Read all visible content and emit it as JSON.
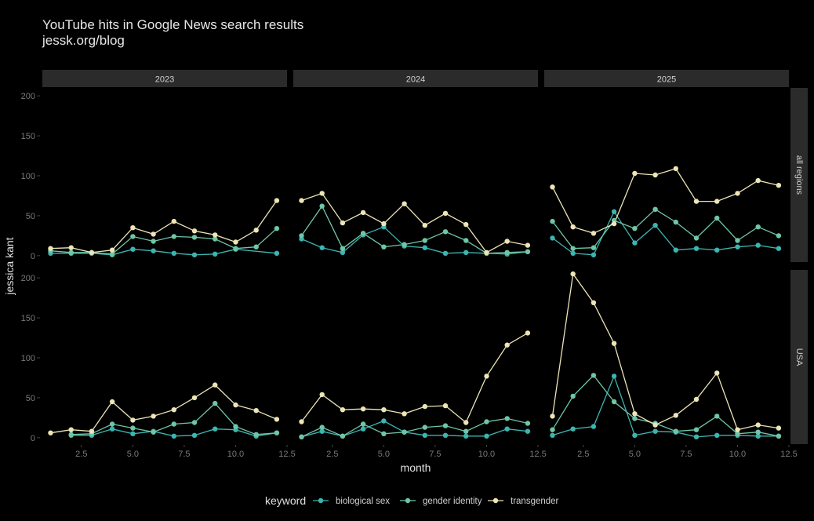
{
  "chart_data": {
    "type": "line",
    "title": "YouTube hits in Google News search results",
    "subtitle": "jessk.org/blog",
    "xlabel": "month",
    "ylabel": "jessica kant",
    "facet_cols": [
      "2023",
      "2024",
      "2025"
    ],
    "facet_rows": [
      "all regions",
      "USA"
    ],
    "x_range": [
      0.6,
      12.5
    ],
    "x_ticks": [
      "2.5",
      "5.0",
      "7.5",
      "10.0",
      "12.5"
    ],
    "y_range": [
      -8,
      210
    ],
    "y_ticks": [
      "0",
      "50",
      "100",
      "150",
      "200"
    ],
    "legend_title": "keyword",
    "legend_position": "bottom",
    "series_info": [
      {
        "name": "biological sex",
        "color": "#3BB5B0"
      },
      {
        "name": "gender identity",
        "color": "#6FC6A6"
      },
      {
        "name": "transgender",
        "color": "#EDE5B6"
      }
    ],
    "panels": [
      {
        "year": "2023",
        "region": "all regions",
        "series": [
          {
            "name": "biological sex",
            "x": [
              1,
              2,
              3,
              4,
              5,
              6,
              7,
              8,
              9,
              10,
              12
            ],
            "y": [
              3,
              3,
              3,
              1,
              8,
              6,
              3,
              1,
              2,
              8,
              3
            ]
          },
          {
            "name": "gender identity",
            "x": [
              1,
              2,
              3,
              4,
              5,
              6,
              7,
              8,
              9,
              10,
              11,
              12
            ],
            "y": [
              6,
              4,
              4,
              2,
              24,
              18,
              24,
              23,
              21,
              9,
              11,
              34
            ]
          },
          {
            "name": "transgender",
            "x": [
              1,
              2,
              3,
              4,
              5,
              6,
              7,
              8,
              9,
              10,
              11,
              12
            ],
            "y": [
              9,
              10,
              4,
              7,
              35,
              27,
              43,
              31,
              26,
              17,
              32,
              69
            ]
          }
        ]
      },
      {
        "year": "2024",
        "region": "all regions",
        "series": [
          {
            "name": "biological sex",
            "x": [
              1,
              2,
              3,
              4,
              5,
              6,
              7,
              8,
              9,
              10,
              11,
              12
            ],
            "y": [
              21,
              10,
              4,
              26,
              36,
              12,
              10,
              3,
              4,
              3,
              2,
              5
            ]
          },
          {
            "name": "gender identity",
            "x": [
              1,
              2,
              3,
              4,
              5,
              6,
              7,
              8,
              9,
              10,
              11,
              12
            ],
            "y": [
              25,
              62,
              9,
              28,
              11,
              14,
              19,
              30,
              19,
              3,
              4,
              5
            ]
          },
          {
            "name": "transgender",
            "x": [
              1,
              2,
              3,
              4,
              5,
              6,
              7,
              8,
              9,
              10,
              11,
              12
            ],
            "y": [
              69,
              78,
              41,
              54,
              40,
              65,
              38,
              53,
              39,
              4,
              18,
              13
            ]
          }
        ]
      },
      {
        "year": "2025",
        "region": "all regions",
        "series": [
          {
            "name": "biological sex",
            "x": [
              1,
              2,
              3,
              4,
              5,
              6,
              7,
              8,
              9,
              10,
              11,
              12
            ],
            "y": [
              22,
              3,
              1,
              55,
              16,
              38,
              7,
              9,
              7,
              11,
              13,
              9
            ]
          },
          {
            "name": "gender identity",
            "x": [
              1,
              2,
              3,
              4,
              5,
              6,
              7,
              8,
              9,
              10,
              11,
              12
            ],
            "y": [
              43,
              9,
              10,
              44,
              34,
              58,
              42,
              22,
              47,
              19,
              36,
              25
            ]
          },
          {
            "name": "transgender",
            "x": [
              1,
              2,
              3,
              4,
              5,
              6,
              7,
              8,
              9,
              10,
              11,
              12
            ],
            "y": [
              86,
              36,
              28,
              40,
              103,
              101,
              109,
              68,
              68,
              78,
              94,
              88
            ]
          }
        ]
      },
      {
        "year": "2023",
        "region": "USA",
        "series": [
          {
            "name": "biological sex",
            "x": [
              2,
              3,
              4,
              5,
              6,
              7,
              8,
              9,
              10,
              11,
              12
            ],
            "y": [
              3,
              3,
              11,
              5,
              8,
              2,
              3,
              11,
              10,
              2,
              6
            ]
          },
          {
            "name": "gender identity",
            "x": [
              2,
              3,
              4,
              5,
              6,
              7,
              8,
              9,
              10,
              11,
              12
            ],
            "y": [
              4,
              5,
              17,
              12,
              7,
              17,
              19,
              43,
              14,
              4,
              6
            ]
          },
          {
            "name": "transgender",
            "x": [
              1,
              2,
              3,
              4,
              5,
              6,
              7,
              8,
              9,
              10,
              11,
              12
            ],
            "y": [
              6,
              10,
              8,
              45,
              22,
              27,
              35,
              50,
              66,
              41,
              34,
              23
            ]
          }
        ]
      },
      {
        "year": "2024",
        "region": "USA",
        "series": [
          {
            "name": "biological sex",
            "x": [
              1,
              2,
              3,
              4,
              5,
              6,
              7,
              8,
              9,
              10,
              11,
              12
            ],
            "y": [
              1,
              8,
              2,
              11,
              21,
              7,
              3,
              3,
              2,
              2,
              11,
              8
            ]
          },
          {
            "name": "gender identity",
            "x": [
              1,
              2,
              3,
              4,
              5,
              6,
              7,
              8,
              9,
              10,
              11,
              12
            ],
            "y": [
              1,
              13,
              2,
              17,
              5,
              7,
              13,
              15,
              8,
              20,
              24,
              18
            ]
          },
          {
            "name": "transgender",
            "x": [
              1,
              2,
              3,
              4,
              5,
              6,
              7,
              8,
              9,
              10,
              11,
              12
            ],
            "y": [
              20,
              54,
              35,
              36,
              35,
              30,
              39,
              40,
              19,
              77,
              116,
              131
            ]
          }
        ]
      },
      {
        "year": "2025",
        "region": "USA",
        "series": [
          {
            "name": "biological sex",
            "x": [
              1,
              2,
              3,
              4,
              5,
              6,
              7,
              8,
              9,
              10,
              11,
              12
            ],
            "y": [
              3,
              11,
              14,
              77,
              3,
              8,
              7,
              1,
              3,
              3,
              2,
              2
            ]
          },
          {
            "name": "gender identity",
            "x": [
              1,
              2,
              3,
              4,
              5,
              6,
              7,
              8,
              9,
              10,
              11,
              12
            ],
            "y": [
              10,
              52,
              78,
              45,
              24,
              18,
              8,
              10,
              27,
              5,
              7,
              2
            ]
          },
          {
            "name": "transgender",
            "x": [
              1,
              2,
              3,
              4,
              5,
              6,
              7,
              8,
              9,
              10,
              11,
              12
            ],
            "y": [
              27,
              205,
              169,
              118,
              30,
              16,
              28,
              48,
              81,
              10,
              16,
              12
            ]
          }
        ]
      }
    ]
  }
}
